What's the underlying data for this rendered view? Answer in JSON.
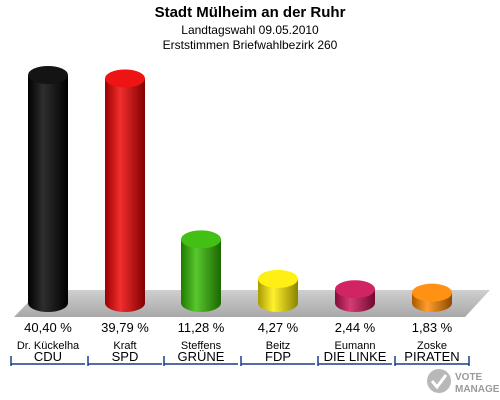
{
  "header": {
    "title": "Stadt Mülheim an der Ruhr",
    "subtitle1": "Landtagswahl 09.05.2010",
    "subtitle2": "Erststimmen Briefwahlbezirk 260"
  },
  "chart_data": {
    "type": "bar",
    "title": "Stadt Mülheim an der Ruhr",
    "subtitle": "Landtagswahl 09.05.2010 — Erststimmen Briefwahlbezirk 260",
    "categories": [
      "CDU",
      "SPD",
      "GRÜNE",
      "FDP",
      "DIE LINKE",
      "PIRATEN"
    ],
    "candidates": [
      "Dr. Kückelha",
      "Kraft",
      "Steffens",
      "Beitz",
      "Eumann",
      "Zoske"
    ],
    "values": [
      40.4,
      39.79,
      11.28,
      4.27,
      2.44,
      1.83
    ],
    "value_labels": [
      "40,40 %",
      "39,79 %",
      "11,28 %",
      "4,27 %",
      "2,44 %",
      "1,83 %"
    ],
    "colors": [
      "#000000",
      "#ee0000",
      "#33bb00",
      "#ffee00",
      "#cc1155",
      "#ff8800"
    ],
    "ylim": [
      0,
      40.4
    ],
    "grid": false,
    "legend": "none"
  },
  "logo": {
    "line1": "VOTE",
    "line2": "MANAGER"
  }
}
